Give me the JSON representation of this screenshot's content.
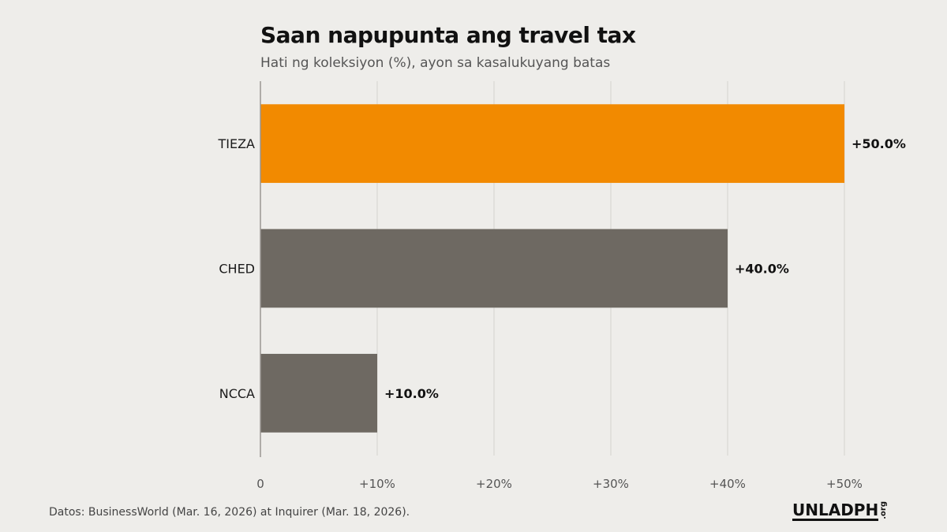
{
  "chart_data": {
    "type": "bar",
    "orientation": "horizontal",
    "title": "Saan napupunta ang travel tax",
    "subtitle": "Hati ng koleksiyon (%), ayon sa kasalukuyang batas",
    "categories": [
      "TIEZA",
      "CHED",
      "NCCA"
    ],
    "values": [
      50.0,
      40.0,
      10.0
    ],
    "value_labels": [
      "+50.0%",
      "+40.0%",
      "+10.0%"
    ],
    "bar_colors": [
      "#f28a00",
      "#6e6962",
      "#6e6962"
    ],
    "xlim": [
      0,
      50
    ],
    "xticks": [
      0,
      10,
      20,
      30,
      40,
      50
    ],
    "xtick_labels": [
      "0",
      "+10%",
      "+20%",
      "+30%",
      "+40%",
      "+50%"
    ],
    "grid": "vertical",
    "xlabel": "",
    "ylabel": ""
  },
  "footer": {
    "source": "Datos: BusinessWorld (Mar. 16, 2026) at Inquirer (Mar. 18, 2026)."
  },
  "logo": {
    "main": "UNLADPH",
    "suffix": ".org"
  }
}
